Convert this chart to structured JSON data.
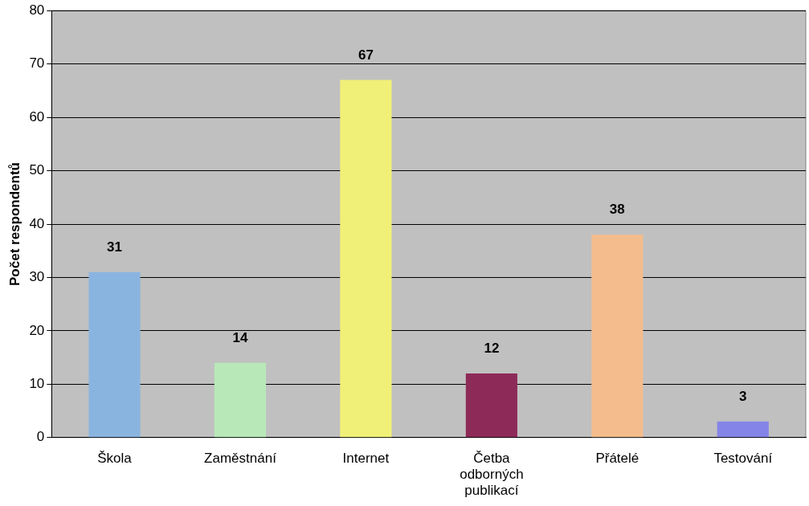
{
  "chart_data": {
    "type": "bar",
    "ylabel": "Počet respondentů",
    "categories": [
      "Škola",
      "Zaměstnání",
      "Internet",
      "Četba odborných publikací",
      "Přátelé",
      "Testování"
    ],
    "values": [
      31,
      14,
      67,
      12,
      38,
      3
    ],
    "colors": [
      "#8ab4e0",
      "#b8e8b8",
      "#f0f078",
      "#8e2a58",
      "#f4bc8c",
      "#8484e8"
    ],
    "ylim": [
      0,
      80
    ],
    "yticks": [
      0,
      10,
      20,
      30,
      40,
      50,
      60,
      70,
      80
    ],
    "grid": "y",
    "data_labels": true,
    "legend": false
  }
}
